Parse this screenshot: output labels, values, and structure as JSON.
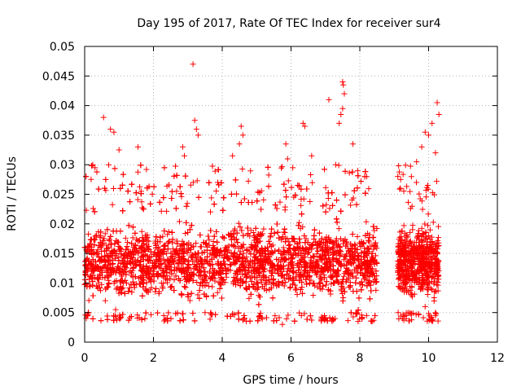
{
  "chart_data": {
    "type": "scatter",
    "title": "Day 195 of 2017, Rate Of TEC Index for receiver sur4",
    "xlabel": "GPS time / hours",
    "ylabel": "ROTI / TECUs",
    "xlim": [
      0,
      12
    ],
    "ylim": [
      0,
      0.05
    ],
    "xticks": [
      "0",
      "2",
      "4",
      "6",
      "8",
      "10",
      "12"
    ],
    "yticks": [
      "0",
      "0.005",
      "0.01",
      "0.015",
      "0.02",
      "0.025",
      "0.03",
      "0.035",
      "0.04",
      "0.045",
      "0.05"
    ],
    "grid": true,
    "marker": "+",
    "color": "#ff0000",
    "series": [
      {
        "name": "ROTI",
        "coverage_hours": [
          [
            0.0,
            8.5
          ],
          [
            9.1,
            10.3
          ]
        ],
        "typical_range": [
          0.005,
          0.022
        ],
        "points": [
          [
            0.55,
            0.038
          ],
          [
            0.75,
            0.036
          ],
          [
            0.85,
            0.0355
          ],
          [
            1.0,
            0.0325
          ],
          [
            0.3,
            0.0295
          ],
          [
            1.55,
            0.033
          ],
          [
            3.15,
            0.047
          ],
          [
            3.2,
            0.0375
          ],
          [
            3.25,
            0.036
          ],
          [
            3.3,
            0.035
          ],
          [
            2.85,
            0.033
          ],
          [
            2.9,
            0.0315
          ],
          [
            4.55,
            0.0365
          ],
          [
            4.6,
            0.035
          ],
          [
            4.5,
            0.0335
          ],
          [
            4.3,
            0.0315
          ],
          [
            5.85,
            0.0335
          ],
          [
            5.9,
            0.031
          ],
          [
            6.05,
            0.0295
          ],
          [
            6.35,
            0.037
          ],
          [
            6.4,
            0.0365
          ],
          [
            6.6,
            0.0315
          ],
          [
            7.1,
            0.041
          ],
          [
            7.5,
            0.044
          ],
          [
            7.52,
            0.0435
          ],
          [
            7.55,
            0.042
          ],
          [
            7.5,
            0.0395
          ],
          [
            7.45,
            0.0385
          ],
          [
            7.4,
            0.037
          ],
          [
            7.8,
            0.0335
          ],
          [
            7.3,
            0.03
          ],
          [
            8.2,
            0.028
          ],
          [
            9.5,
            0.028
          ],
          [
            9.65,
            0.0305
          ],
          [
            9.8,
            0.033
          ],
          [
            9.9,
            0.0355
          ],
          [
            10.0,
            0.035
          ],
          [
            10.1,
            0.037
          ],
          [
            10.25,
            0.0405
          ],
          [
            10.3,
            0.0385
          ],
          [
            10.2,
            0.032
          ],
          [
            0.6,
            0.007
          ],
          [
            0.9,
            0.0055
          ],
          [
            2.3,
            0.0045
          ],
          [
            3.5,
            0.005
          ],
          [
            4.7,
            0.0035
          ],
          [
            5.1,
            0.0045
          ],
          [
            5.75,
            0.003
          ],
          [
            6.3,
            0.0045
          ],
          [
            7.0,
            0.004
          ],
          [
            7.95,
            0.0035
          ],
          [
            9.35,
            0.0045
          ],
          [
            9.9,
            0.006
          ],
          [
            10.2,
            0.0045
          ]
        ]
      }
    ]
  }
}
